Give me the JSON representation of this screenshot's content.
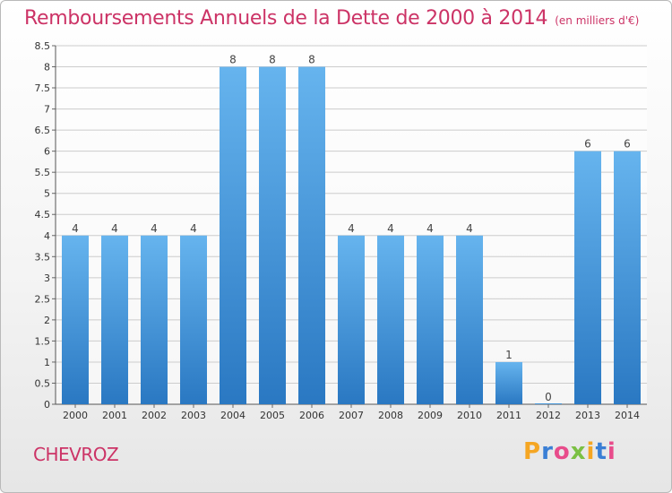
{
  "header": {
    "title": "Remboursements Annuels de la Dette de 2000 à 2014",
    "unit": "(en milliers d'€)"
  },
  "footer": {
    "commune": "CHEVROZ",
    "logo": "Proxiti",
    "logo_colors": [
      "#f5a623",
      "#3a7fd5",
      "#e84c8b",
      "#7bc043",
      "#f5a623",
      "#3a7fd5",
      "#e84c8b"
    ]
  },
  "colors": {
    "bar": "#4a9de0",
    "bar_light": "#66b4ee",
    "bar_dark": "#2a78c2",
    "title": "#cc3366",
    "grid": "#cccccc"
  },
  "chart_data": {
    "type": "bar",
    "categories": [
      "2000",
      "2001",
      "2002",
      "2003",
      "2004",
      "2005",
      "2006",
      "2007",
      "2008",
      "2009",
      "2010",
      "2011",
      "2012",
      "2013",
      "2014"
    ],
    "values": [
      4,
      4,
      4,
      4,
      8,
      8,
      8,
      4,
      4,
      4,
      4,
      1,
      0,
      6,
      6
    ],
    "ylim": [
      0,
      8.5
    ],
    "yticks": [
      "0",
      "0.5",
      "1",
      "1.5",
      "2",
      "2.5",
      "3",
      "3.5",
      "4",
      "4.5",
      "5",
      "5.5",
      "6",
      "6.5",
      "7",
      "7.5",
      "8",
      "8.5"
    ],
    "grid": true,
    "xlabel": "",
    "ylabel": ""
  }
}
